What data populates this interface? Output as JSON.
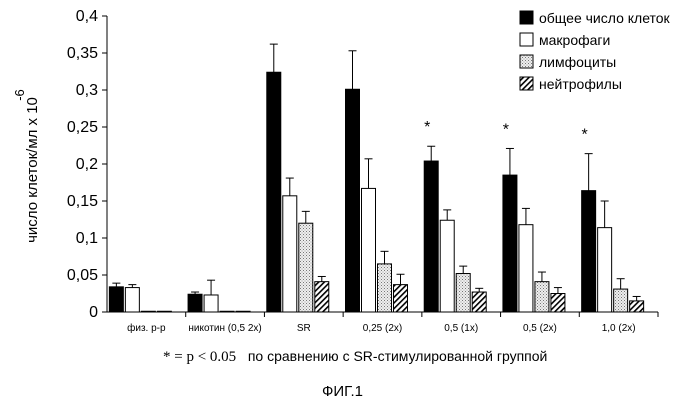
{
  "chart_data": {
    "type": "bar",
    "ylabel": "число клеток/мл х 10",
    "ylabel_exponent": "-6",
    "ylim": [
      0,
      0.4
    ],
    "yticks": [
      "0",
      "0,05",
      "0,1",
      "0,15",
      "0,2",
      "0,25",
      "0,3",
      "0,35",
      "0,4"
    ],
    "categories": [
      "физ. р-р",
      "никотин (0,5 2х)",
      "SR",
      "0,25 (2х)",
      "0,5 (1х)",
      "0,5 (2х)",
      "1,0 (2х)"
    ],
    "series": [
      {
        "name": "общее число клеток",
        "fill": "solid",
        "values": [
          0.034,
          0.024,
          0.324,
          0.301,
          0.204,
          0.185,
          0.164
        ],
        "errors": [
          0.005,
          0.003,
          0.038,
          0.052,
          0.02,
          0.036,
          0.05
        ]
      },
      {
        "name": "макрофаги",
        "fill": "white",
        "values": [
          0.033,
          0.023,
          0.157,
          0.167,
          0.124,
          0.118,
          0.114
        ],
        "errors": [
          0.004,
          0.02,
          0.024,
          0.04,
          0.014,
          0.022,
          0.036
        ]
      },
      {
        "name": "лимфоциты",
        "fill": "dotted",
        "values": [
          0.001,
          0.001,
          0.12,
          0.065,
          0.052,
          0.041,
          0.031
        ],
        "errors": [
          0,
          0,
          0.016,
          0.017,
          0.01,
          0.013,
          0.014
        ]
      },
      {
        "name": "нейтрофилы",
        "fill": "hatched",
        "values": [
          0.001,
          0.001,
          0.041,
          0.037,
          0.027,
          0.025,
          0.015
        ],
        "errors": [
          0,
          0,
          0.007,
          0.014,
          0.005,
          0.008,
          0.006
        ]
      }
    ],
    "annotations": [
      {
        "category_index": 4,
        "text": "*"
      },
      {
        "category_index": 5,
        "text": "*"
      },
      {
        "category_index": 6,
        "text": "*"
      }
    ],
    "legend_position": "top-right",
    "colors": {
      "solid": "#000000",
      "white": "#ffffff",
      "dotted": "#d0d0d0",
      "hatched": "#000000"
    }
  },
  "footnote": {
    "math": "* = p < 0.05",
    "text": "по сравнению с SR-стимулированной группой"
  },
  "figure_label": "ФИГ.1"
}
